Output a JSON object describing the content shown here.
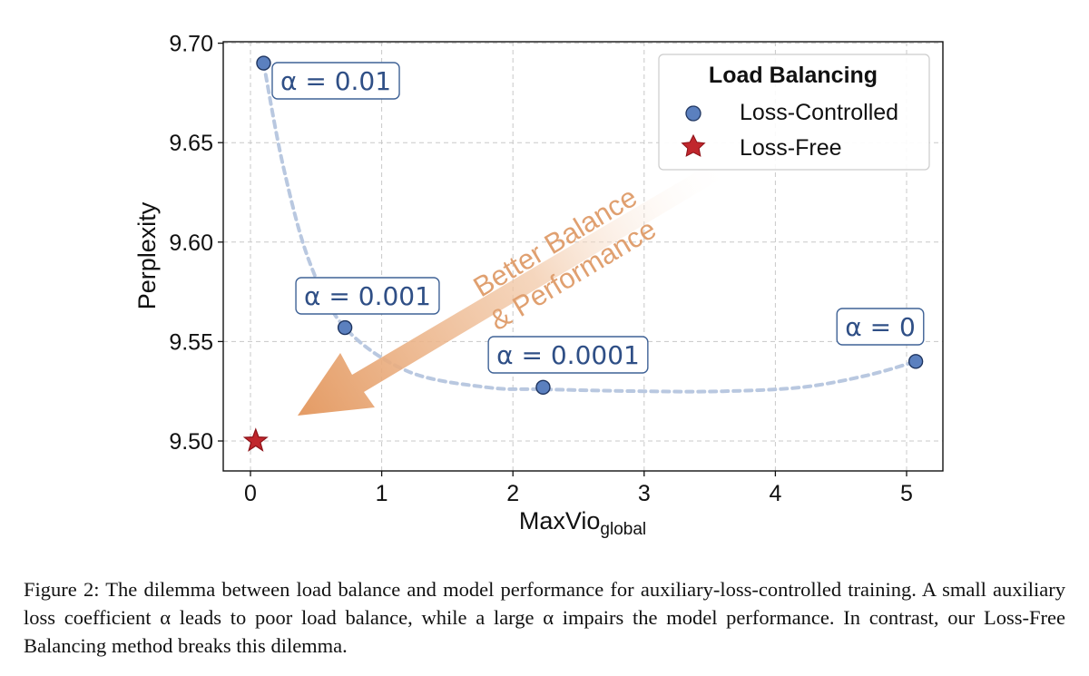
{
  "chart_data": {
    "type": "scatter",
    "xlabel_main": "MaxVio",
    "xlabel_sub": "global",
    "ylabel": "Perplexity",
    "xlim": [
      -0.2,
      5.3
    ],
    "ylim": [
      9.485,
      9.7
    ],
    "xticks": [
      0,
      1,
      2,
      3,
      4,
      5
    ],
    "yticks": [
      9.5,
      9.55,
      9.6,
      9.65,
      9.7
    ],
    "ytick_labels": [
      "9.50",
      "9.55",
      "9.60",
      "9.65",
      "9.70"
    ],
    "grid": true,
    "series": [
      {
        "name": "Loss-Controlled",
        "marker": "circle",
        "color": "#5b80bf",
        "points": [
          {
            "x": 0.1,
            "y": 9.69,
            "label": "α = 0.01"
          },
          {
            "x": 0.72,
            "y": 9.557,
            "label": "α = 0.001"
          },
          {
            "x": 2.23,
            "y": 9.527,
            "label": "α = 0.0001"
          },
          {
            "x": 5.07,
            "y": 9.54,
            "label": "α = 0"
          }
        ]
      },
      {
        "name": "Loss-Free",
        "marker": "star",
        "color": "#c0272d",
        "points": [
          {
            "x": 0.04,
            "y": 9.5
          }
        ]
      }
    ],
    "trend_curve": {
      "color": "#b9c8e0",
      "points": [
        [
          0.1,
          9.69
        ],
        [
          0.25,
          9.638
        ],
        [
          0.45,
          9.59
        ],
        [
          0.72,
          9.557
        ],
        [
          1.2,
          9.535
        ],
        [
          1.8,
          9.527
        ],
        [
          2.23,
          9.526
        ],
        [
          3.0,
          9.525
        ],
        [
          3.6,
          9.525
        ],
        [
          4.2,
          9.527
        ],
        [
          4.7,
          9.533
        ],
        [
          5.07,
          9.54
        ]
      ]
    },
    "arrow_text": [
      "Better Balance",
      "& Performance"
    ],
    "legend": {
      "title": "Load Balancing",
      "position": "top-right",
      "entries": [
        "Loss-Controlled",
        "Loss-Free"
      ]
    }
  },
  "caption": "Figure 2: The dilemma between load balance and model performance for auxiliary-loss-controlled training. A small auxiliary loss coefficient α leads to poor load balance, while a large α impairs the model performance. In contrast, our Loss-Free Balancing method breaks this dilemma."
}
